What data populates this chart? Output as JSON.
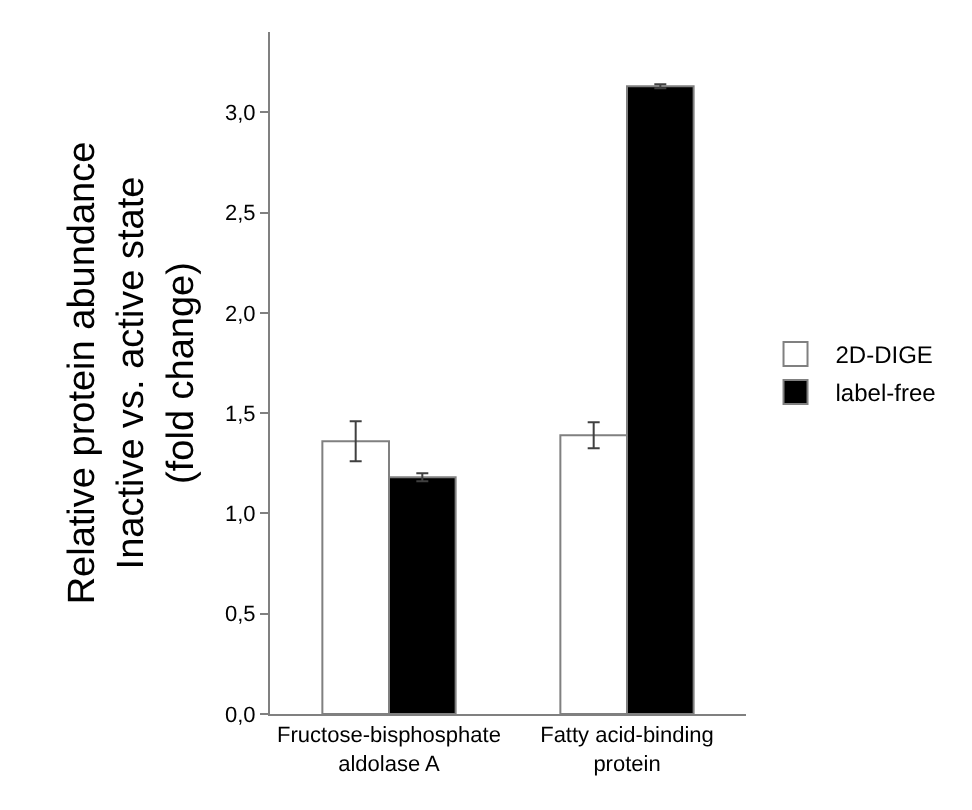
{
  "chart_data": {
    "type": "bar",
    "ylabel": "Relative protein abundance\nInactive vs. active state\n(fold change)",
    "categories": [
      "Fructose-bisphosphate\naldolase A",
      "Fatty acid-binding\nprotein"
    ],
    "series": [
      {
        "name": "2D-DIGE",
        "color": "#ffffff",
        "values": [
          1.36,
          1.39
        ],
        "errors": [
          0.1,
          0.065
        ]
      },
      {
        "name": "label-free",
        "color": "#000000",
        "values": [
          1.18,
          3.13
        ],
        "errors": [
          0.02,
          0.01
        ]
      }
    ],
    "ylim": [
      0,
      3.4
    ],
    "yticks": [
      {
        "value": 0,
        "label": "0,0"
      },
      {
        "value": 0.5,
        "label": "0,5"
      },
      {
        "value": 1,
        "label": "1,0"
      },
      {
        "value": 1.5,
        "label": "1,5"
      },
      {
        "value": 2,
        "label": "2,0"
      },
      {
        "value": 2.5,
        "label": "2,5"
      },
      {
        "value": 3,
        "label": "3,0"
      }
    ],
    "grid": false,
    "legend": "right"
  }
}
